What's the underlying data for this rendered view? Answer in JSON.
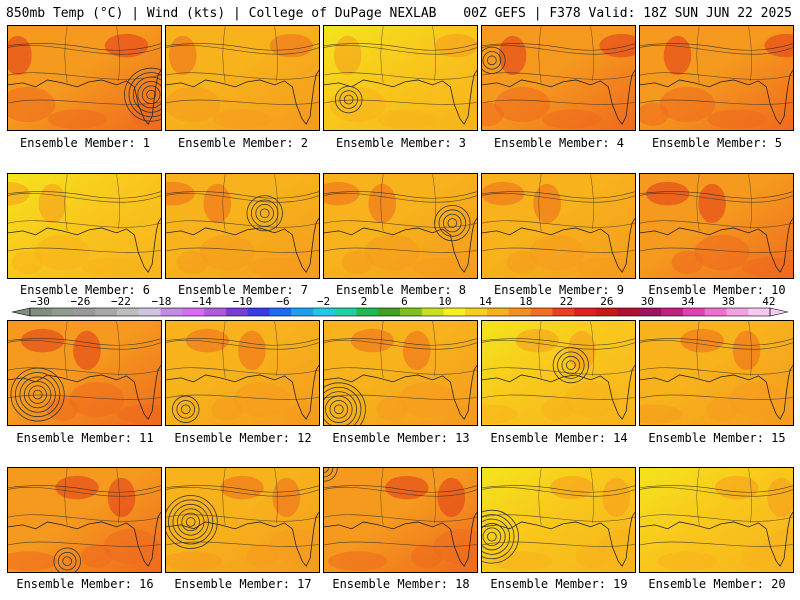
{
  "header": {
    "left": "850mb Temp (°C) | Wind (kts) | College of DuPage NEXLAB",
    "right": "00Z GEFS | F378 Valid: 18Z SUN JUN 22 2025"
  },
  "panels": [
    {
      "label": "Ensemble Member: 1",
      "tone": "hot",
      "cyclone": "strong"
    },
    {
      "label": "Ensemble Member: 2",
      "tone": "warm",
      "cyclone": "none"
    },
    {
      "label": "Ensemble Member: 3",
      "tone": "mild",
      "cyclone": "weak"
    },
    {
      "label": "Ensemble Member: 4",
      "tone": "hot",
      "cyclone": "weak"
    },
    {
      "label": "Ensemble Member: 5",
      "tone": "hot",
      "cyclone": "none"
    },
    {
      "label": "Ensemble Member: 6",
      "tone": "mild",
      "cyclone": "none"
    },
    {
      "label": "Ensemble Member: 7",
      "tone": "warm",
      "cyclone": "medium"
    },
    {
      "label": "Ensemble Member: 8",
      "tone": "warm",
      "cyclone": "medium"
    },
    {
      "label": "Ensemble Member: 9",
      "tone": "warm",
      "cyclone": "none"
    },
    {
      "label": "Ensemble Member: 10",
      "tone": "hot",
      "cyclone": "none"
    },
    {
      "label": "Ensemble Member: 11",
      "tone": "hot",
      "cyclone": "strong"
    },
    {
      "label": "Ensemble Member: 12",
      "tone": "warm",
      "cyclone": "weak"
    },
    {
      "label": "Ensemble Member: 13",
      "tone": "warm",
      "cyclone": "strong"
    },
    {
      "label": "Ensemble Member: 14",
      "tone": "mild",
      "cyclone": "medium"
    },
    {
      "label": "Ensemble Member: 15",
      "tone": "warm",
      "cyclone": "none"
    },
    {
      "label": "Ensemble Member: 16",
      "tone": "hot",
      "cyclone": "weak"
    },
    {
      "label": "Ensemble Member: 17",
      "tone": "warm",
      "cyclone": "strong"
    },
    {
      "label": "Ensemble Member: 18",
      "tone": "hot",
      "cyclone": "weak"
    },
    {
      "label": "Ensemble Member: 19",
      "tone": "mild",
      "cyclone": "strong"
    },
    {
      "label": "Ensemble Member: 20",
      "tone": "mild",
      "cyclone": "none"
    }
  ],
  "colorbar": {
    "labels": [
      "−30",
      "−26",
      "−22",
      "−18",
      "−14",
      "−10",
      "−6",
      "−2",
      "2",
      "6",
      "10",
      "14",
      "18",
      "22",
      "26",
      "30",
      "34",
      "38",
      "42"
    ],
    "colors": [
      "#7f8f7f",
      "#8e9a8e",
      "#9a9a9a",
      "#a8a8a8",
      "#bdbdbd",
      "#cfc4de",
      "#c48ae6",
      "#d66cf0",
      "#b05ae0",
      "#7a3ed6",
      "#3a3ae6",
      "#1e6af0",
      "#1ea0f0",
      "#20c8e8",
      "#20d0a0",
      "#20b850",
      "#40a020",
      "#80c020",
      "#c8e020",
      "#f5f020",
      "#f5d020",
      "#f5b020",
      "#f59020",
      "#f07020",
      "#e84020",
      "#e02020",
      "#c81818",
      "#b01030",
      "#a01060",
      "#c02080",
      "#e040b0",
      "#f070d0",
      "#f4a0e0",
      "#f8c8f0"
    ],
    "tones": {
      "hot": [
        "#f59a1e",
        "#ef6a1e",
        "#e2381c",
        "#f59a1e"
      ],
      "warm": [
        "#f7b21c",
        "#f59a1e",
        "#ef6a1e",
        "#f7b21c"
      ],
      "mild": [
        "#f9c81c",
        "#f7b21c",
        "#f59a1e",
        "#f4e41c"
      ]
    }
  }
}
